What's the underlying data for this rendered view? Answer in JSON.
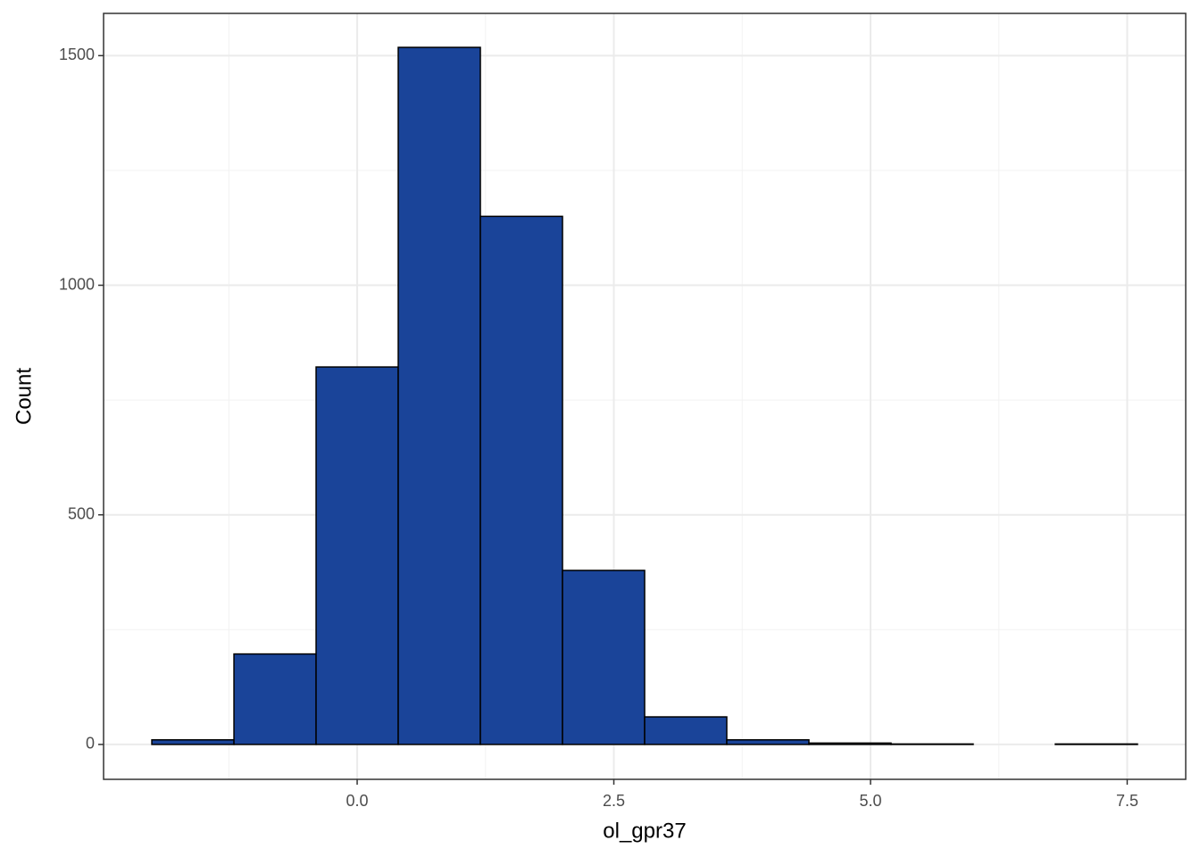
{
  "chart_data": {
    "type": "histogram",
    "x_label": "ol_gpr37",
    "y_label": "Count",
    "bins": [
      -2.0,
      -1.2,
      -0.4,
      0.4,
      1.2,
      2.0,
      2.8,
      3.6,
      4.4,
      5.2,
      6.0,
      6.8,
      7.6
    ],
    "values": [
      10,
      197,
      822,
      1518,
      1150,
      379,
      60,
      10,
      3,
      1,
      0,
      1
    ],
    "color": "#1a4499",
    "edge_color": "#000000",
    "xlim": [
      -2.47,
      8.07
    ],
    "ylim": [
      -76,
      1592
    ],
    "xticks": [
      {
        "value": 0,
        "label": "0.0"
      },
      {
        "value": 2.5,
        "label": "2.5"
      },
      {
        "value": 5,
        "label": "5.0"
      },
      {
        "value": 7.5,
        "label": "7.5"
      }
    ],
    "yticks": [
      0,
      500,
      1000,
      1500
    ],
    "x_minor_grid": [
      -1.25,
      1.25,
      3.75,
      6.25
    ],
    "y_minor_grid": [
      250,
      750,
      1250
    ],
    "grid": true
  }
}
